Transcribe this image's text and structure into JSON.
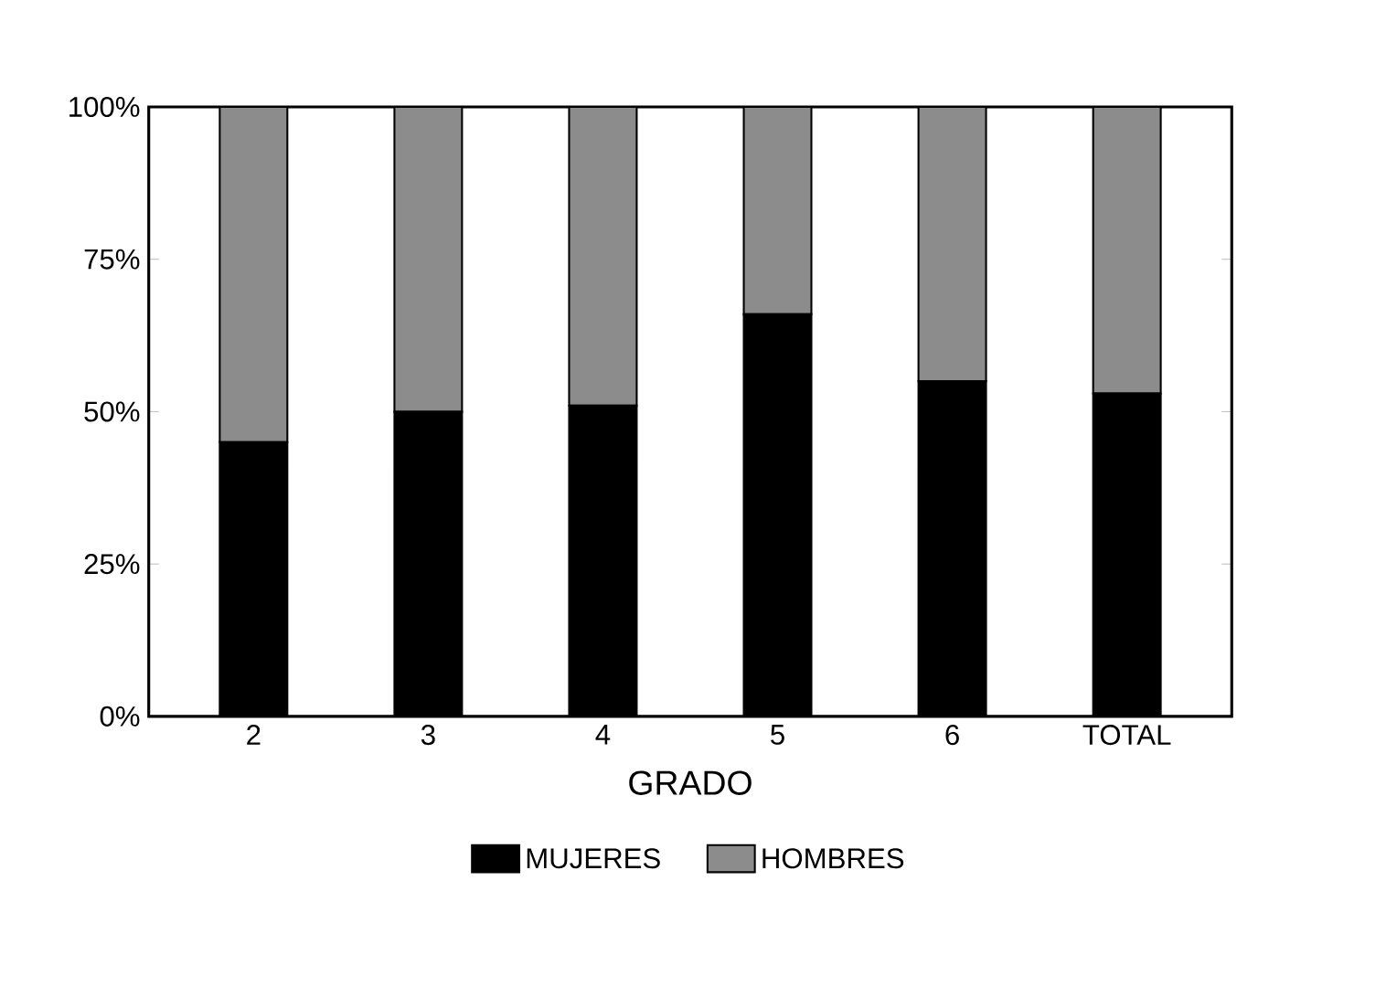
{
  "chart_data": {
    "type": "bar",
    "stacked": true,
    "xlabel": "GRADO",
    "categories": [
      "2",
      "3",
      "4",
      "5",
      "6",
      "TOTAL"
    ],
    "series": [
      {
        "name": "MUJERES",
        "color": "#000000",
        "values": [
          45,
          50,
          51,
          66,
          55,
          53
        ]
      },
      {
        "name": "HOMBRES",
        "color": "#8c8c8c",
        "values": [
          55,
          50,
          49,
          34,
          45,
          47
        ]
      }
    ],
    "ylim": [
      0,
      100
    ],
    "yticks": [
      {
        "value": 0,
        "label": "0%"
      },
      {
        "value": 25,
        "label": "25%"
      },
      {
        "value": 50,
        "label": "50%"
      },
      {
        "value": 75,
        "label": "75%"
      },
      {
        "value": 100,
        "label": "100%"
      }
    ],
    "grid": false,
    "legend": "bottom"
  }
}
